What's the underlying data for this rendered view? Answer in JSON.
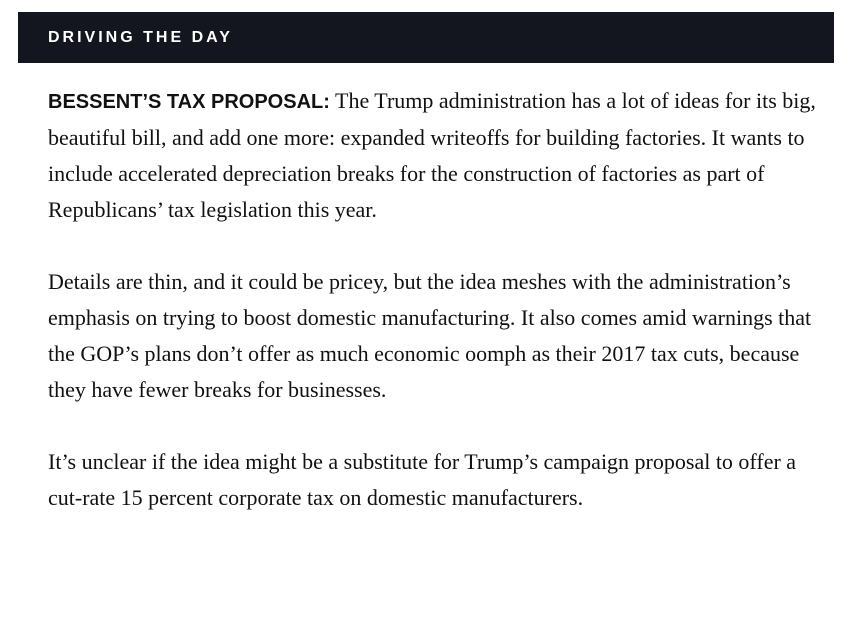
{
  "header": {
    "title": "DRIVING THE DAY"
  },
  "paragraphs": [
    {
      "lead": "BESSENT’S TAX PROPOSAL:",
      "text": "The Trump administration has a lot of ideas for its big, beautiful bill, and add one more: expanded writeoffs for building factories. It wants to include accelerated depreciation breaks for the construction of factories as part of Republicans’ tax legislation this year."
    },
    {
      "text": "Details are thin, and it could be pricey, but the idea meshes with the administration’s emphasis on trying to boost domestic manufacturing. It also comes amid warnings that the GOP’s plans don’t offer as much economic oomph as their 2017 tax cuts, because they have fewer breaks for businesses."
    },
    {
      "text": "It’s unclear if the idea might be a substitute for Trump’s campaign proposal to offer a cut-rate 15 percent corporate tax on domestic manufacturers."
    }
  ]
}
